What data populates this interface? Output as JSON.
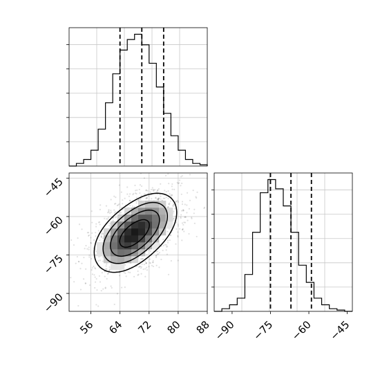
{
  "chart_data": {
    "type": "corner",
    "grid": true,
    "panels": [
      {
        "position": "top-left",
        "type": "histogram",
        "xlim": [
          50,
          88
        ],
        "bins": [
          50,
          52,
          54,
          56,
          58,
          60,
          62,
          64,
          66,
          68,
          70,
          72,
          74,
          76,
          78,
          80,
          82,
          84,
          86,
          88
        ],
        "counts": [
          0,
          0.02,
          0.05,
          0.12,
          0.28,
          0.48,
          0.7,
          0.88,
          0.96,
          1.0,
          0.92,
          0.78,
          0.6,
          0.4,
          0.23,
          0.12,
          0.05,
          0.02,
          0.01
        ],
        "quantiles": [
          64,
          70,
          76
        ]
      },
      {
        "position": "bottom-left",
        "type": "2d-density",
        "xlim": [
          50,
          88
        ],
        "ylim": [
          -97,
          -43
        ],
        "x_ticks": [
          "56",
          "64",
          "72",
          "80",
          "88"
        ],
        "y_ticks": [
          "−45",
          "−60",
          "−75",
          "−90"
        ],
        "peaks": [
          {
            "x": 65,
            "y": -70
          },
          {
            "x": 72,
            "y": -62
          }
        ]
      },
      {
        "position": "bottom-right",
        "type": "histogram",
        "xlim": [
          -97,
          -43
        ],
        "x_ticks": [
          "−90",
          "−75",
          "−60",
          "−45"
        ],
        "bins": [
          -97,
          -94,
          -91,
          -88,
          -85,
          -82,
          -79,
          -76,
          -73,
          -70,
          -67,
          -64,
          -61,
          -58,
          -55,
          -52,
          -49,
          -46,
          -43
        ],
        "counts": [
          0,
          0.02,
          0.05,
          0.1,
          0.28,
          0.6,
          0.9,
          1.0,
          0.93,
          0.8,
          0.6,
          0.35,
          0.22,
          0.1,
          0.05,
          0.02,
          0.01,
          0
        ],
        "quantiles": [
          -75,
          -67,
          -59
        ]
      }
    ]
  }
}
